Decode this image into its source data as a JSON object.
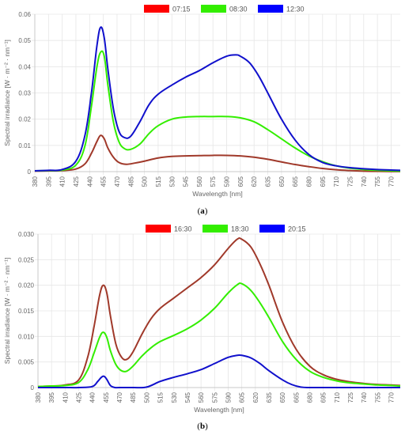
{
  "chart_data": [
    {
      "type": "line",
      "panel_label": "(a)",
      "xlabel": "Wavelength [nm]",
      "ylabel": "Spectral irradiance [W · m⁻² · nm⁻¹]",
      "x_ticks": [
        380,
        395,
        410,
        425,
        440,
        455,
        470,
        485,
        500,
        515,
        530,
        545,
        560,
        575,
        590,
        605,
        620,
        635,
        650,
        665,
        680,
        695,
        710,
        725,
        740,
        755,
        770
      ],
      "y_ticks": [
        0,
        0.01,
        0.02,
        0.03,
        0.04,
        0.05,
        0.06
      ],
      "y_tick_labels": [
        "0",
        "0.01",
        "0.02",
        "0.03",
        "0.04",
        "0.05",
        "0.06"
      ],
      "xlim": [
        380,
        780
      ],
      "ylim": [
        0,
        0.06
      ],
      "grid": true,
      "legend_position": "top-center",
      "series": [
        {
          "name": "07:15",
          "color": "#a0392a",
          "legend_color": "#ff0000",
          "x": [
            380,
            395,
            410,
            425,
            435,
            442,
            448,
            452,
            456,
            460,
            466,
            472,
            480,
            490,
            500,
            515,
            530,
            545,
            560,
            575,
            590,
            605,
            620,
            635,
            650,
            665,
            680,
            695,
            710,
            725,
            740,
            755,
            770,
            780
          ],
          "y": [
            0.0002,
            0.0003,
            0.0004,
            0.001,
            0.003,
            0.007,
            0.0115,
            0.0138,
            0.0125,
            0.009,
            0.0055,
            0.0035,
            0.0028,
            0.0033,
            0.004,
            0.0052,
            0.0058,
            0.006,
            0.0061,
            0.0062,
            0.0062,
            0.006,
            0.0055,
            0.0047,
            0.0037,
            0.0027,
            0.0019,
            0.0012,
            0.0007,
            0.0004,
            0.0002,
            0.0001,
            5e-05,
            3e-05
          ]
        },
        {
          "name": "08:30",
          "color": "#33ee00",
          "legend_color": "#33ee00",
          "x": [
            380,
            395,
            410,
            425,
            435,
            442,
            448,
            452,
            456,
            460,
            466,
            472,
            478,
            485,
            495,
            505,
            515,
            530,
            545,
            560,
            575,
            590,
            605,
            620,
            635,
            650,
            665,
            680,
            695,
            710,
            725,
            740,
            755,
            770,
            780
          ],
          "y": [
            0.0003,
            0.0004,
            0.0006,
            0.0025,
            0.01,
            0.025,
            0.04,
            0.0455,
            0.044,
            0.033,
            0.019,
            0.0115,
            0.0088,
            0.0085,
            0.0105,
            0.0145,
            0.0175,
            0.02,
            0.0208,
            0.021,
            0.021,
            0.021,
            0.0205,
            0.019,
            0.016,
            0.0125,
            0.009,
            0.006,
            0.0038,
            0.0022,
            0.0013,
            0.0008,
            0.0005,
            0.0003,
            0.0002
          ]
        },
        {
          "name": "12:30",
          "color": "#1010cc",
          "legend_color": "#0000ff",
          "x": [
            380,
            395,
            410,
            425,
            435,
            442,
            448,
            452,
            456,
            460,
            466,
            472,
            478,
            485,
            495,
            505,
            515,
            530,
            545,
            560,
            575,
            590,
            600,
            605,
            615,
            625,
            635,
            650,
            665,
            680,
            695,
            710,
            725,
            740,
            755,
            770,
            780
          ],
          "y": [
            0.0003,
            0.0005,
            0.0008,
            0.004,
            0.014,
            0.03,
            0.048,
            0.055,
            0.051,
            0.039,
            0.024,
            0.0155,
            0.013,
            0.0135,
            0.019,
            0.0255,
            0.0295,
            0.033,
            0.036,
            0.0385,
            0.0415,
            0.044,
            0.0445,
            0.044,
            0.0415,
            0.0365,
            0.03,
            0.02,
            0.012,
            0.0065,
            0.0035,
            0.0022,
            0.0015,
            0.0011,
            0.0008,
            0.0006,
            0.0005
          ]
        }
      ]
    },
    {
      "type": "line",
      "panel_label": "(b)",
      "xlabel": "Wavelength [nm]",
      "ylabel": "Spectral irradiance [W · m⁻² · nm⁻¹]",
      "x_ticks": [
        380,
        395,
        410,
        425,
        440,
        455,
        470,
        485,
        500,
        515,
        530,
        545,
        560,
        575,
        590,
        605,
        620,
        635,
        650,
        665,
        680,
        695,
        710,
        725,
        740,
        755,
        770
      ],
      "y_ticks": [
        0,
        0.005,
        0.01,
        0.015,
        0.02,
        0.025,
        0.03
      ],
      "y_tick_labels": [
        "0",
        "0.005",
        "0.010",
        "0.015",
        "0.020",
        "0.025",
        "0.030"
      ],
      "xlim": [
        380,
        780
      ],
      "ylim": [
        0,
        0.03
      ],
      "grid": true,
      "legend_position": "top-center",
      "series": [
        {
          "name": "16:30",
          "color": "#a0392a",
          "legend_color": "#ff0000",
          "x": [
            380,
            395,
            410,
            425,
            435,
            442,
            448,
            452,
            456,
            460,
            466,
            472,
            478,
            485,
            495,
            505,
            515,
            530,
            545,
            560,
            575,
            590,
            600,
            605,
            615,
            625,
            635,
            650,
            665,
            680,
            695,
            710,
            725,
            740,
            755,
            770,
            780
          ],
          "y": [
            0.0002,
            0.0003,
            0.0005,
            0.0015,
            0.006,
            0.012,
            0.018,
            0.02,
            0.0185,
            0.014,
            0.0085,
            0.006,
            0.0055,
            0.007,
            0.0105,
            0.0135,
            0.0155,
            0.0175,
            0.0195,
            0.0215,
            0.024,
            0.0272,
            0.029,
            0.029,
            0.0275,
            0.0242,
            0.02,
            0.0128,
            0.0075,
            0.0042,
            0.0025,
            0.0016,
            0.0011,
            0.0008,
            0.0006,
            0.0005,
            0.0004
          ]
        },
        {
          "name": "18:30",
          "color": "#33ee00",
          "legend_color": "#33ee00",
          "x": [
            380,
            395,
            410,
            425,
            435,
            442,
            448,
            452,
            456,
            460,
            466,
            472,
            478,
            485,
            495,
            505,
            515,
            530,
            545,
            560,
            575,
            590,
            600,
            605,
            615,
            625,
            635,
            650,
            665,
            680,
            695,
            710,
            725,
            740,
            755,
            770,
            780
          ],
          "y": [
            0.0002,
            0.0003,
            0.0004,
            0.001,
            0.0035,
            0.0068,
            0.0098,
            0.0108,
            0.0098,
            0.0072,
            0.0045,
            0.0033,
            0.0032,
            0.0042,
            0.0062,
            0.0078,
            0.009,
            0.0102,
            0.0115,
            0.0132,
            0.0155,
            0.0185,
            0.0201,
            0.0203,
            0.019,
            0.0166,
            0.0137,
            0.009,
            0.0055,
            0.0032,
            0.002,
            0.0013,
            0.0009,
            0.0007,
            0.0005,
            0.0004,
            0.0003
          ]
        },
        {
          "name": "20:15",
          "color": "#1010cc",
          "legend_color": "#0000ff",
          "x": [
            380,
            395,
            410,
            425,
            440,
            446,
            450,
            453,
            456,
            460,
            465,
            470,
            485,
            500,
            515,
            530,
            545,
            560,
            575,
            590,
            600,
            605,
            615,
            625,
            635,
            650,
            660,
            670,
            680,
            695,
            710,
            725,
            740,
            755,
            770,
            780
          ],
          "y": [
            0,
            0,
            0,
            0,
            0.0002,
            0.0012,
            0.002,
            0.0022,
            0.0016,
            0.0004,
            0,
            0,
            0,
            0.0001,
            0.0012,
            0.002,
            0.0027,
            0.0035,
            0.0047,
            0.0059,
            0.0063,
            0.0063,
            0.0058,
            0.0047,
            0.0033,
            0.0015,
            0.0006,
            0.0001,
            0,
            0,
            0,
            0,
            0,
            0,
            0,
            0
          ]
        }
      ]
    }
  ]
}
